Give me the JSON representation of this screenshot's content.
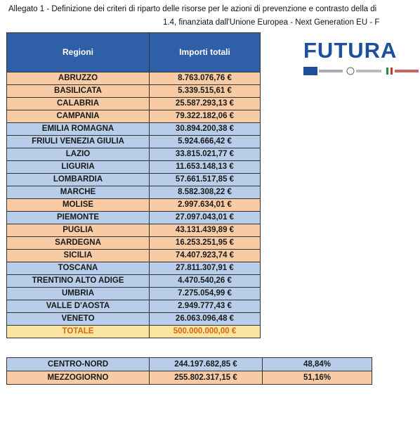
{
  "header": {
    "line1": "Allegato 1 - Definizione dei criteri di riparto delle risorse per le azioni di prevenzione e contrasto della di",
    "line2": "1.4, finanziata dall'Unione Europea - Next Generation EU - F"
  },
  "logo": "FUTURA",
  "table": {
    "columns": [
      "Regioni",
      "Importi totali"
    ],
    "rows": [
      {
        "cells": [
          "ABRUZZO",
          "8.763.076,76 €"
        ],
        "color": "#f8cba4"
      },
      {
        "cells": [
          "BASILICATA",
          "5.339.515,61 €"
        ],
        "color": "#f8cba4"
      },
      {
        "cells": [
          "CALABRIA",
          "25.587.293,13 €"
        ],
        "color": "#f8cba4"
      },
      {
        "cells": [
          "CAMPANIA",
          "79.322.182,06 €"
        ],
        "color": "#f8cba4"
      },
      {
        "cells": [
          "EMILIA ROMAGNA",
          "30.894.200,38 €"
        ],
        "color": "#b7cde9"
      },
      {
        "cells": [
          "FRIULI VENEZIA GIULIA",
          "5.924.666,42 €"
        ],
        "color": "#b7cde9"
      },
      {
        "cells": [
          "LAZIO",
          "33.815.021,77 €"
        ],
        "color": "#b7cde9"
      },
      {
        "cells": [
          "LIGURIA",
          "11.653.148,13 €"
        ],
        "color": "#b7cde9"
      },
      {
        "cells": [
          "LOMBARDIA",
          "57.661.517,85 €"
        ],
        "color": "#b7cde9"
      },
      {
        "cells": [
          "MARCHE",
          "8.582.308,22 €"
        ],
        "color": "#b7cde9"
      },
      {
        "cells": [
          "MOLISE",
          "2.997.634,01 €"
        ],
        "color": "#f8cba4"
      },
      {
        "cells": [
          "PIEMONTE",
          "27.097.043,01 €"
        ],
        "color": "#b7cde9"
      },
      {
        "cells": [
          "PUGLIA",
          "43.131.439,89 €"
        ],
        "color": "#f8cba4"
      },
      {
        "cells": [
          "SARDEGNA",
          "16.253.251,95 €"
        ],
        "color": "#f8cba4"
      },
      {
        "cells": [
          "SICILIA",
          "74.407.923,74 €"
        ],
        "color": "#f8cba4"
      },
      {
        "cells": [
          "TOSCANA",
          "27.811.307,91 €"
        ],
        "color": "#b7cde9"
      },
      {
        "cells": [
          "TRENTINO ALTO ADIGE",
          "4.470.540,26 €"
        ],
        "color": "#b7cde9"
      },
      {
        "cells": [
          "UMBRIA",
          "7.275.054,99 €"
        ],
        "color": "#b7cde9"
      },
      {
        "cells": [
          "VALLE D'AOSTA",
          "2.949.777,43 €"
        ],
        "color": "#b7cde9"
      },
      {
        "cells": [
          "VENETO",
          "26.063.096,48 €"
        ],
        "color": "#b7cde9"
      },
      {
        "cells": [
          "TOTALE",
          "500.000.000,00 €"
        ],
        "color": "#fbe3a0",
        "text_color": "#d9680f"
      }
    ]
  },
  "summary": {
    "rows": [
      {
        "cells": [
          "CENTRO-NORD",
          "244.197.682,85 €",
          "48,84%"
        ],
        "color": "#b7cde9"
      },
      {
        "cells": [
          "MEZZOGIORNO",
          "255.802.317,15 €",
          "51,16%"
        ],
        "color": "#f8cba4"
      }
    ]
  }
}
